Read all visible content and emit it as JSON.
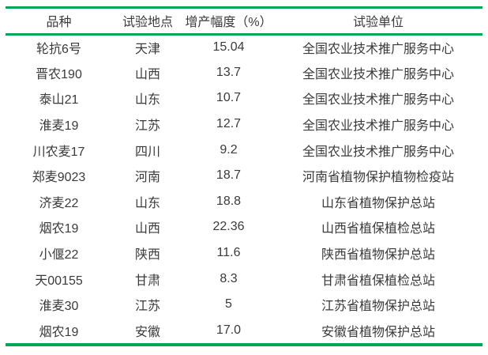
{
  "colors": {
    "accent": "#00a651",
    "text": "#3a3a3a",
    "background": "#ffffff"
  },
  "table": {
    "column_headers": [
      "品种",
      "试验地点",
      "增产幅度（%）",
      "试验单位"
    ],
    "rows": [
      [
        "轮抗6号",
        "天津",
        "15.04",
        "全国农业技术推广服务中心"
      ],
      [
        "晋农190",
        "山西",
        "13.7",
        "全国农业技术推广服务中心"
      ],
      [
        "泰山21",
        "山东",
        "10.7",
        "全国农业技术推广服务中心"
      ],
      [
        "淮麦19",
        "江苏",
        "12.7",
        "全国农业技术推广服务中心"
      ],
      [
        "川农麦17",
        "四川",
        "9.2",
        "全国农业技术推广服务中心"
      ],
      [
        "郑麦9023",
        "河南",
        "18.7",
        "河南省植物保护植物检疫站"
      ],
      [
        "济麦22",
        "山东",
        "18.8",
        "山东省植物保护总站"
      ],
      [
        "烟农19",
        "山西",
        "22.36",
        "山西省植保植检总站"
      ],
      [
        "小偃22",
        "陕西",
        "11.6",
        "陕西省植物保护总站"
      ],
      [
        "天00155",
        "甘肃",
        "8.3",
        "甘肃省植保植检总站"
      ],
      [
        "淮麦30",
        "江苏",
        "5",
        "江苏省植物保护总站"
      ],
      [
        "烟农19",
        "安徽",
        "17.0",
        "安徽省植物保护总站"
      ]
    ]
  }
}
